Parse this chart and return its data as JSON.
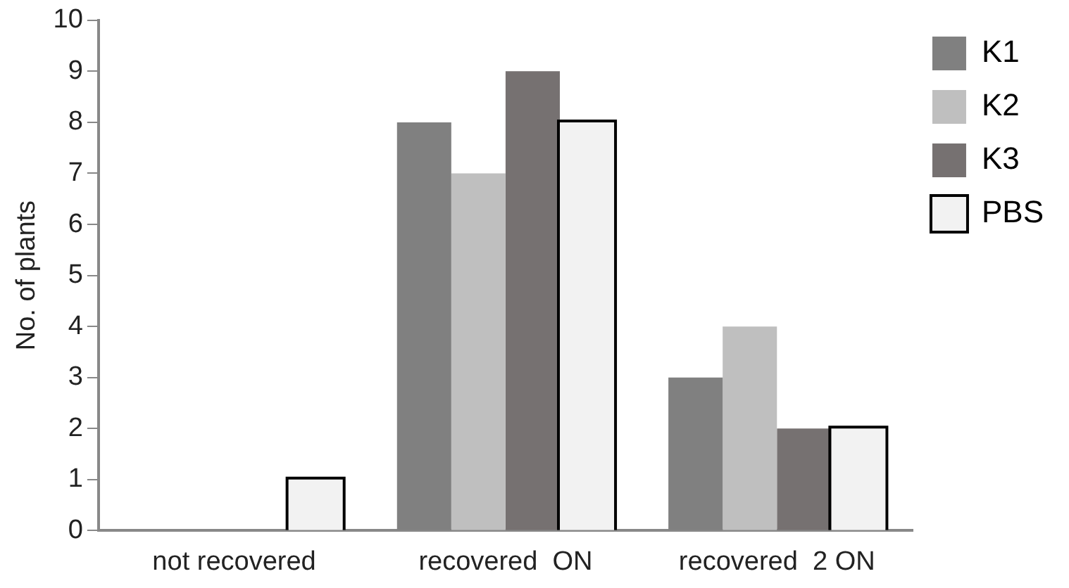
{
  "chart_data": {
    "type": "bar",
    "ylabel": "No. of plants",
    "categories": [
      "not recovered",
      "recovered  ON",
      "recovered  2 ON"
    ],
    "series": [
      {
        "name": "K1",
        "color": "#808080",
        "values": [
          0,
          8,
          3
        ]
      },
      {
        "name": "K2",
        "color": "#bfbfbf",
        "values": [
          0,
          7,
          4
        ]
      },
      {
        "name": "K3",
        "color": "#767171",
        "values": [
          0,
          9,
          2
        ]
      },
      {
        "name": "PBS",
        "color": "#f2f2f2",
        "values": [
          1,
          8,
          2
        ]
      }
    ],
    "ylim": [
      0,
      10
    ],
    "yticks": [
      0,
      1,
      2,
      3,
      4,
      5,
      6,
      7,
      8,
      9,
      10
    ],
    "grid": false,
    "legend": "top right"
  }
}
